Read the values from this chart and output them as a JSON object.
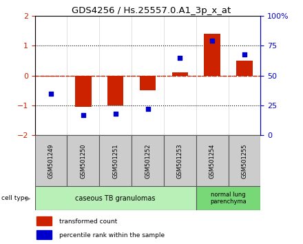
{
  "title": "GDS4256 / Hs.25557.0.A1_3p_x_at",
  "categories": [
    "GSM501249",
    "GSM501250",
    "GSM501251",
    "GSM501252",
    "GSM501253",
    "GSM501254",
    "GSM501255"
  ],
  "red_values": [
    -0.03,
    -1.05,
    -1.0,
    -0.5,
    0.1,
    1.4,
    0.5
  ],
  "blue_values_pct": [
    35,
    17,
    18,
    22,
    65,
    79,
    68
  ],
  "ylim_left": [
    -2,
    2
  ],
  "ylim_right": [
    0,
    100
  ],
  "yticks_left": [
    -2,
    -1,
    0,
    1,
    2
  ],
  "yticks_right": [
    0,
    25,
    50,
    75,
    100
  ],
  "ytick_labels_right": [
    "0",
    "25",
    "50",
    "75",
    "100%"
  ],
  "group1_indices": [
    0,
    1,
    2,
    3,
    4
  ],
  "group2_indices": [
    5,
    6
  ],
  "group1_label": "caseous TB granulomas",
  "group2_label": "normal lung\nparenchyma",
  "group1_color": "#b8f0b8",
  "group2_color": "#78d878",
  "cell_type_label": "cell type",
  "legend_red": "transformed count",
  "legend_blue": "percentile rank within the sample",
  "red_color": "#cc2200",
  "blue_color": "#0000cc",
  "bar_width": 0.5
}
